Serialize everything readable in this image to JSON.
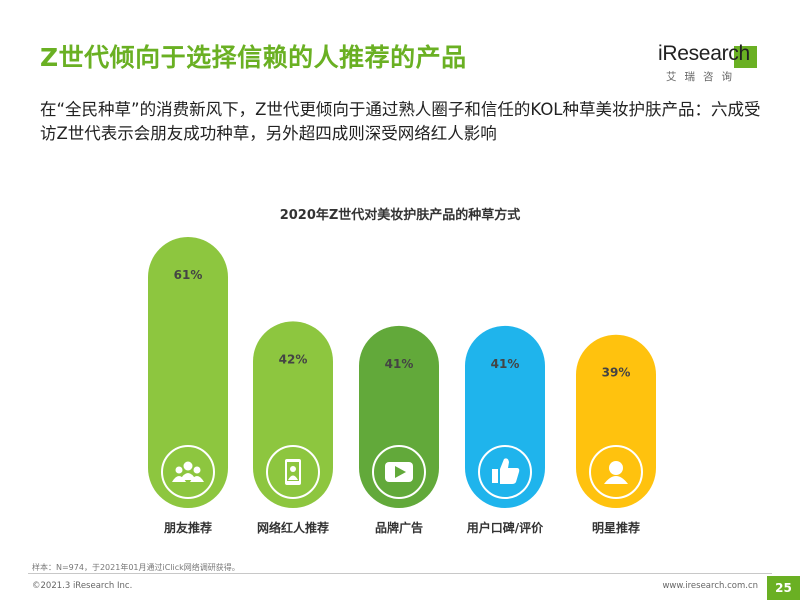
{
  "slide": {
    "title": "Z世代倾向于选择信赖的人推荐的产品",
    "subtitle": "在“全民种草”的消费新风下，Z世代更倾向于通过熟人圈子和信任的KOL种草美妆护肤产品：六成受访Z世代表示会朋友成功种草，另外超四成则深受网络红人影响"
  },
  "logo": {
    "wordmark": "iResearch",
    "tagline": "艾瑞咨询",
    "accent_color": "#6ab023"
  },
  "chart_data": {
    "type": "bar",
    "title": "2020年Z世代对美妆护肤产品的种草方式",
    "unit": "%",
    "ylim": [
      0,
      100
    ],
    "grid": false,
    "legend": "none",
    "categories": [
      "朋友推荐",
      "网络红人推荐",
      "品牌广告",
      "用户口碑/评价",
      "明星推荐"
    ],
    "values": [
      61,
      42,
      41,
      41,
      39
    ],
    "value_labels": [
      "61%",
      "42%",
      "41%",
      "41%",
      "39%"
    ],
    "colors": [
      "#8dc63f",
      "#8dc63f",
      "#62a93a",
      "#1fb4ec",
      "#ffc20e"
    ],
    "icons": [
      "people-group-icon",
      "smartphone-person-icon",
      "play-video-icon",
      "thumbs-up-icon",
      "person-badge-icon"
    ]
  },
  "footer": {
    "source_note": "样本：N=974，于2021年01月通过iClick网络调研获得。",
    "copyright": "©2021.3 iResearch Inc.",
    "website": "www.iresearch.com.cn",
    "page_number": "25"
  }
}
